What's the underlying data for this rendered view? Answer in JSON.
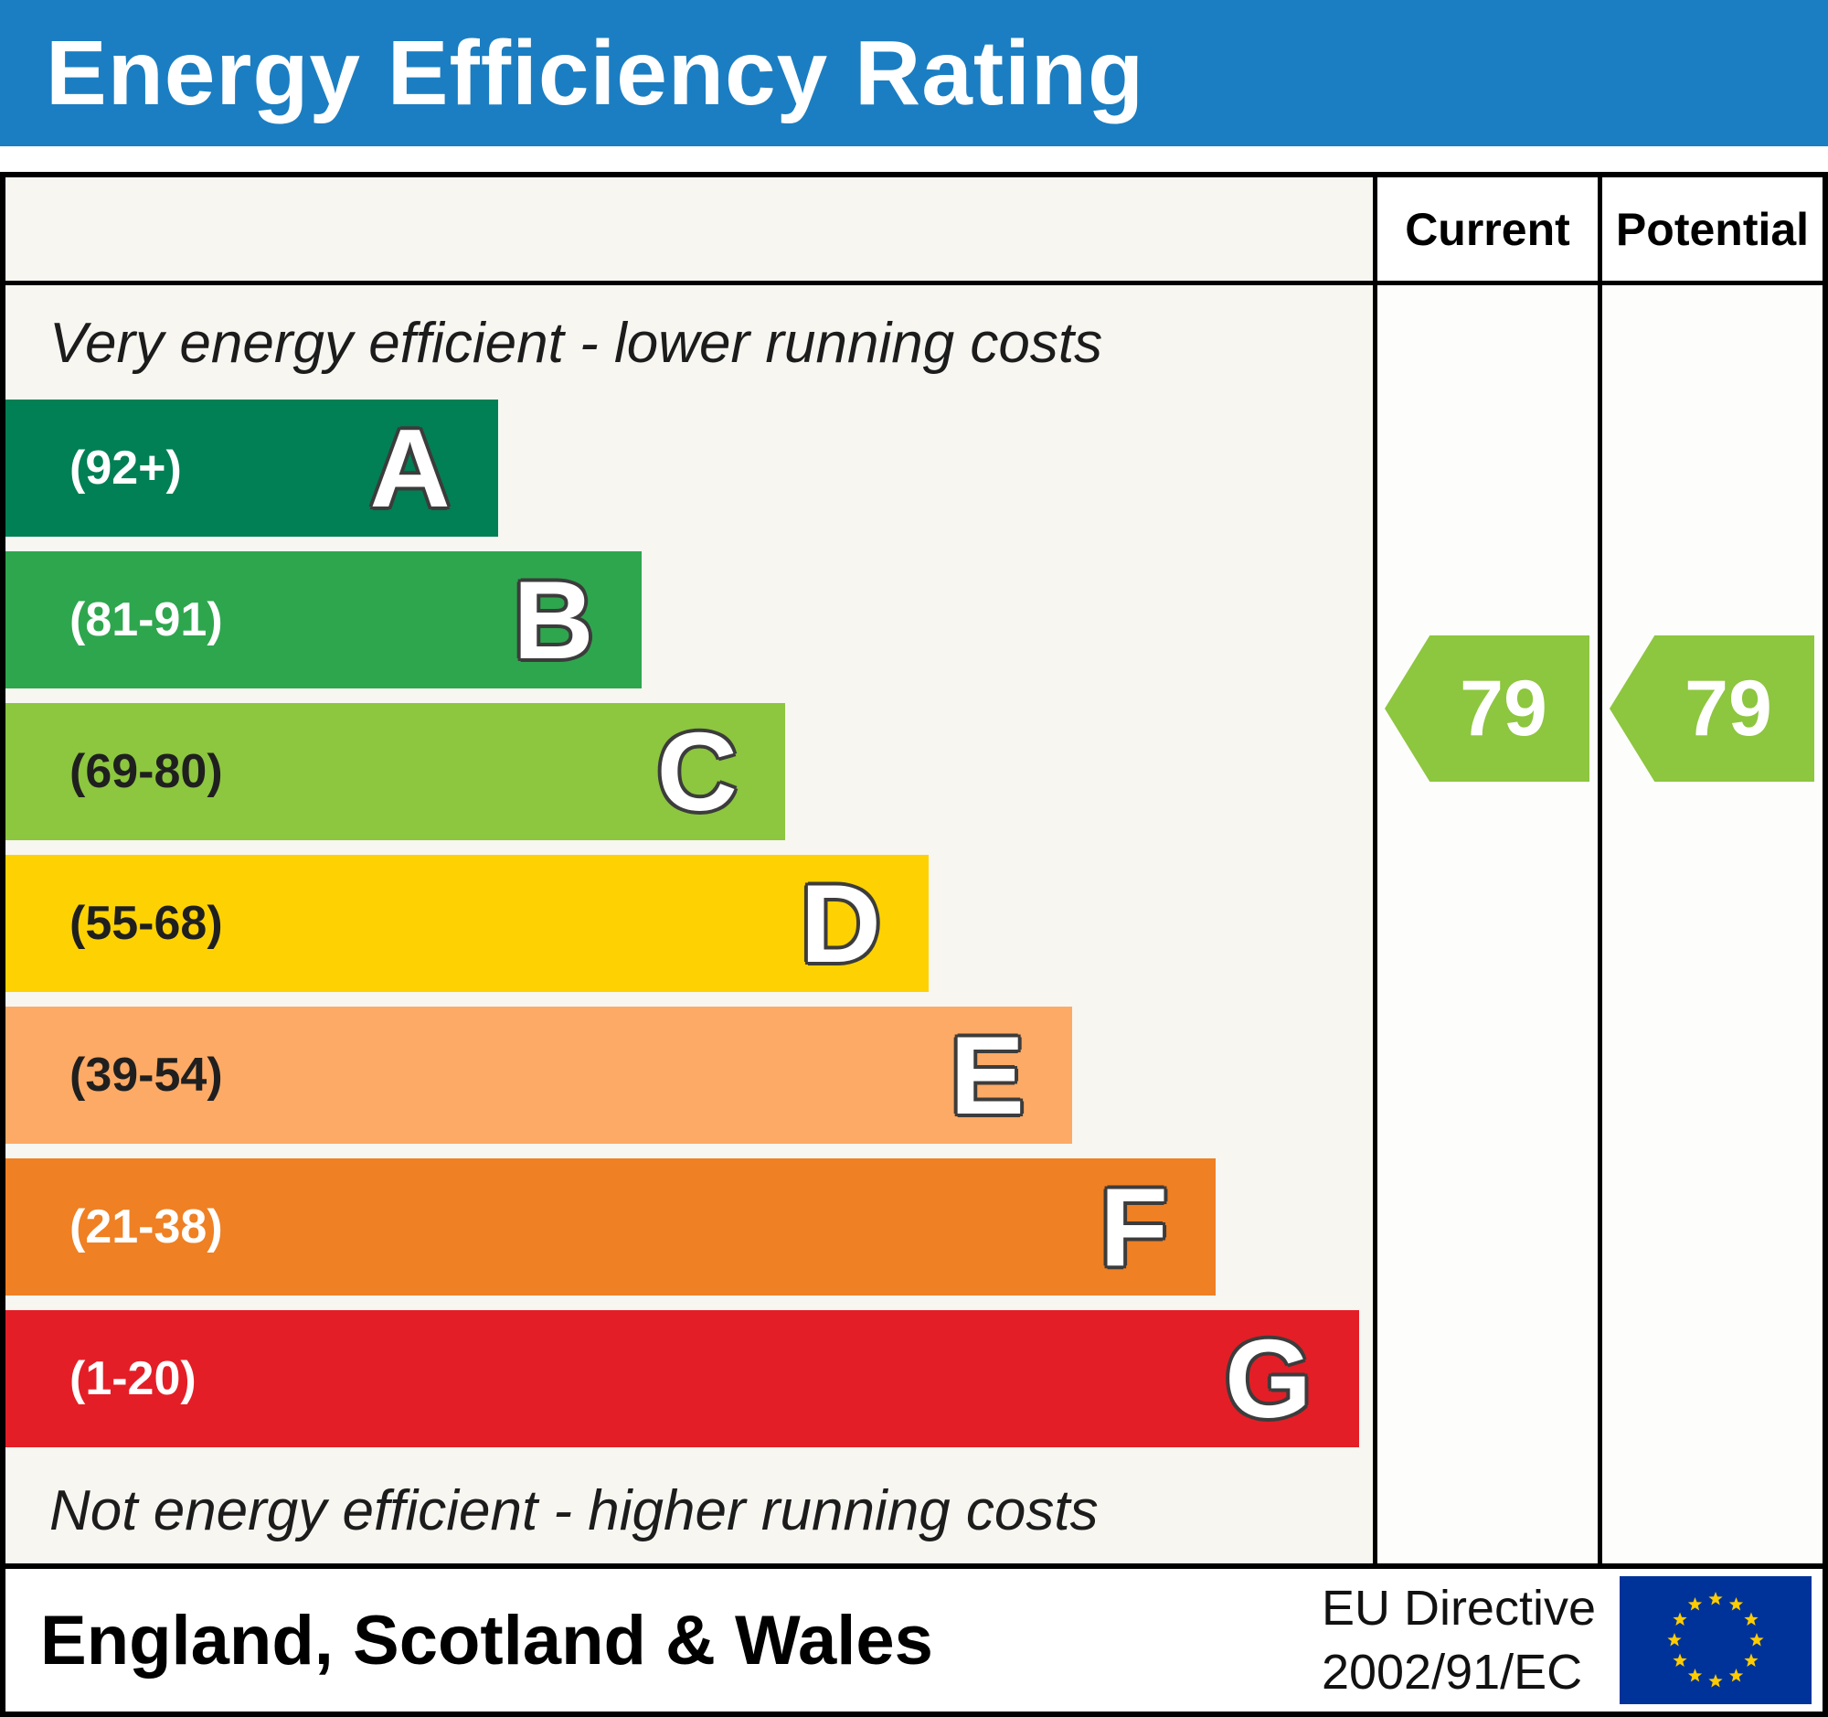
{
  "header": {
    "title": "Energy Efficiency Rating",
    "bg_color": "#1b7ec2"
  },
  "table": {
    "current_label": "Current",
    "potential_label": "Potential",
    "top_caption": "Very energy efficient - lower running costs",
    "bottom_caption": "Not energy efficient - higher running costs"
  },
  "chart_data": {
    "type": "bar",
    "title": "Energy Efficiency Rating",
    "bands": [
      {
        "letter": "A",
        "range": "(92+)",
        "min": 92,
        "max": 100,
        "color": "#008054",
        "width_pct": 36,
        "text_color": "#ffffff"
      },
      {
        "letter": "B",
        "range": "(81-91)",
        "min": 81,
        "max": 91,
        "color": "#2ea64e",
        "width_pct": 46.5,
        "text_color": "#ffffff"
      },
      {
        "letter": "C",
        "range": "(69-80)",
        "min": 69,
        "max": 80,
        "color": "#8dc63f",
        "width_pct": 57,
        "text_color": "#1f1f1f"
      },
      {
        "letter": "D",
        "range": "(55-68)",
        "min": 55,
        "max": 68,
        "color": "#fed202",
        "width_pct": 67.5,
        "text_color": "#1f1f1f"
      },
      {
        "letter": "E",
        "range": "(39-54)",
        "min": 39,
        "max": 54,
        "color": "#fcaa65",
        "width_pct": 78,
        "text_color": "#1f1f1f"
      },
      {
        "letter": "F",
        "range": "(21-38)",
        "min": 21,
        "max": 38,
        "color": "#ef8023",
        "width_pct": 88.5,
        "text_color": "#ffffff"
      },
      {
        "letter": "G",
        "range": "(1-20)",
        "min": 1,
        "max": 20,
        "color": "#e41e26",
        "width_pct": 99,
        "text_color": "#ffffff"
      }
    ],
    "current": 79,
    "potential": 79,
    "current_band": "C",
    "potential_band": "C",
    "arrow_color": "#8dc63f",
    "legend_position": "none",
    "grid": false
  },
  "ratings": {
    "current": "79",
    "potential": "79"
  },
  "footer": {
    "region": "England, Scotland & Wales",
    "directive_line1": "EU Directive",
    "directive_line2": "2002/91/EC",
    "flag": "eu-flag",
    "flag_bg": "#003399",
    "flag_star_color": "#ffcc00"
  }
}
